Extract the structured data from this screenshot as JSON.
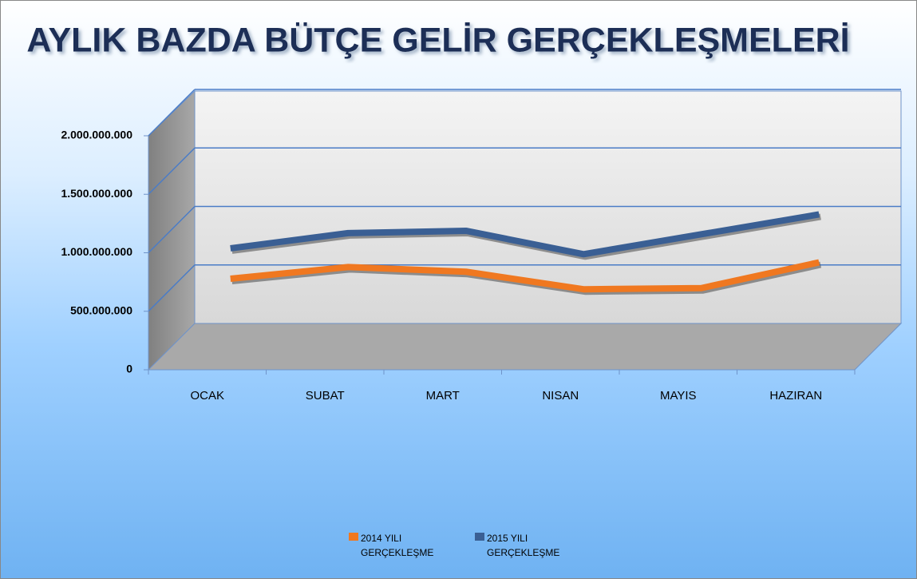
{
  "chart_data": {
    "type": "line",
    "title": "AYLIK BAZDA BÜTÇE GELİR GERÇEKLEŞMELERİ",
    "categories": [
      "OCAK",
      "SUBAT",
      "MART",
      "NISAN",
      "MAYIS",
      "HAZIRAN"
    ],
    "series": [
      {
        "name": "2014 YILI GERÇEKLEŞME",
        "color": "#f07820",
        "values": [
          580000000,
          680000000,
          640000000,
          490000000,
          500000000,
          720000000
        ]
      },
      {
        "name": "2015 YILI GERÇEKLEŞME",
        "color": "#3a5f94",
        "values": [
          840000000,
          970000000,
          990000000,
          790000000,
          960000000,
          1130000000
        ]
      }
    ],
    "ylim": [
      0,
      2000000000
    ],
    "yticks": [
      0,
      {
        "value": 500000000,
        "label": "500.000.000"
      },
      {
        "value": 1000000000,
        "label": "1.000.000.000"
      },
      {
        "value": 1500000000,
        "label": "1.500.000.000"
      },
      {
        "value": 2000000000,
        "label": "2.000.000.000"
      }
    ],
    "grid": true,
    "legend": "bottom"
  }
}
